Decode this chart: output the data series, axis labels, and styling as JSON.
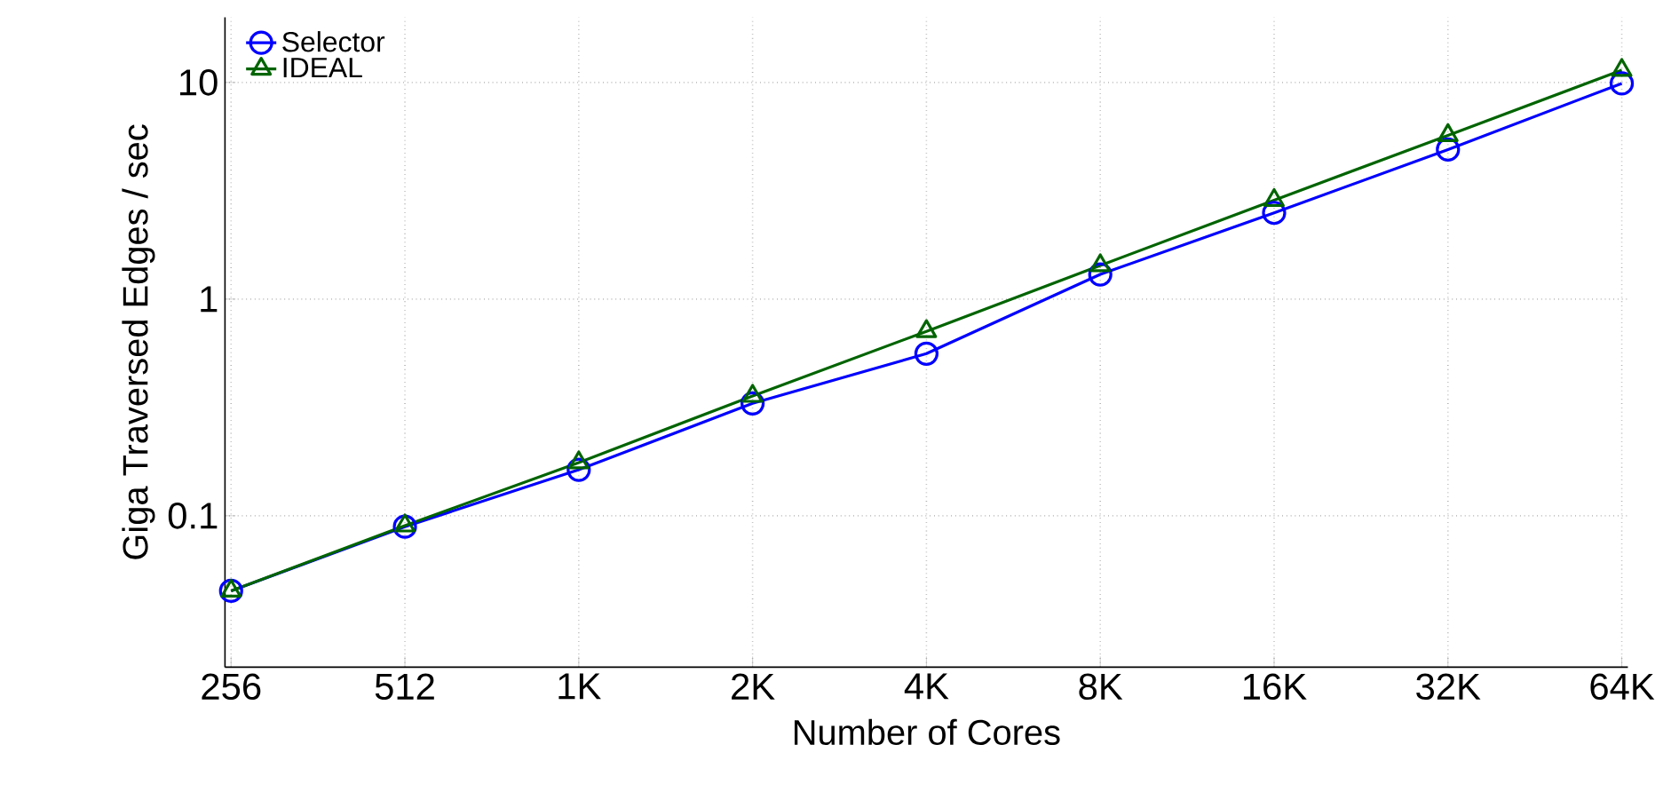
{
  "chart_data": {
    "type": "line",
    "xlabel": "Number of Cores",
    "ylabel": "Giga Traversed Edges / sec",
    "categories": [
      "256",
      "512",
      "1K",
      "2K",
      "4K",
      "8K",
      "16K",
      "32K",
      "64K"
    ],
    "series": [
      {
        "name": "Selector",
        "color": "#0000ff",
        "marker": "circle",
        "values": [
          0.045,
          0.089,
          0.163,
          0.33,
          0.56,
          1.3,
          2.5,
          4.9,
          9.9
        ]
      },
      {
        "name": "IDEAL",
        "color": "#006400",
        "marker": "triangle",
        "values": [
          0.045,
          0.09,
          0.176,
          0.357,
          0.71,
          1.43,
          2.86,
          5.7,
          11.4
        ]
      }
    ],
    "log": "y",
    "ylim": [
      0.02,
      20
    ],
    "yticks": [
      0.1,
      1,
      10
    ],
    "grid": true,
    "legend": "top left",
    "line_style": "solid"
  }
}
